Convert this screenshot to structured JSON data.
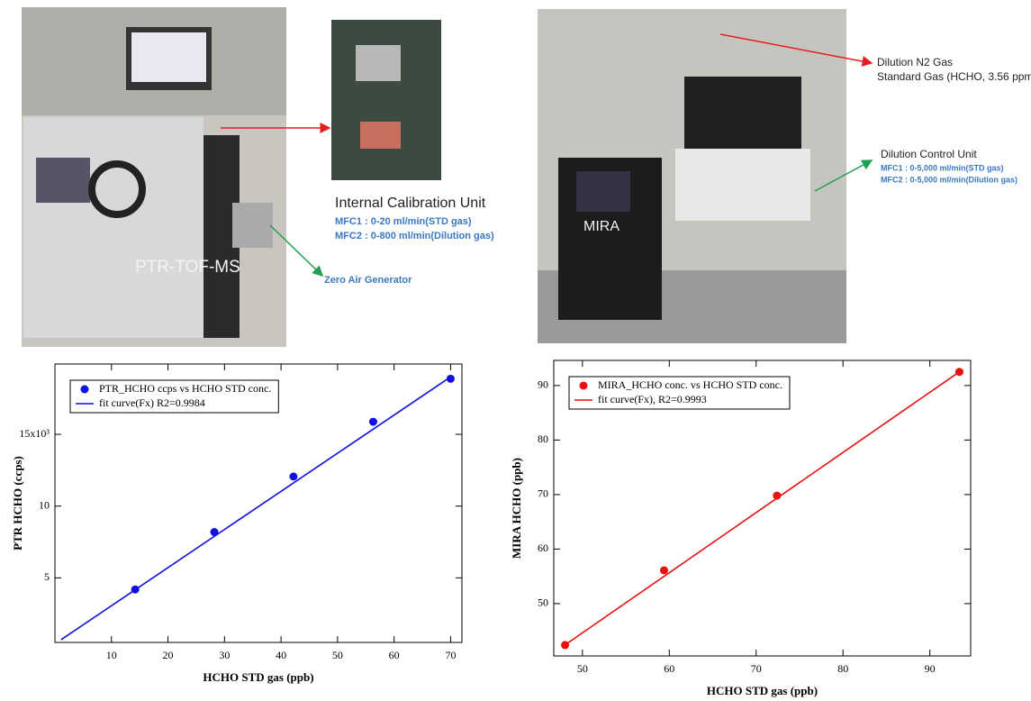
{
  "photos": {
    "left_label": "PTR-TOF-MS",
    "calibration_title": "Internal Calibration Unit",
    "calibration_mfc1": "MFC1 : 0-20 ml/min(STD gas)",
    "calibration_mfc2": "MFC2 : 0-800 ml/min(Dilution gas)",
    "zero_air": "Zero Air Generator",
    "mira_label": "MIRA",
    "dilution_gas": "Dilution N2 Gas",
    "standard_gas": "Standard Gas (HCHO, 3.56 ppm)",
    "control_title": "Dilution Control Unit",
    "control_mfc1": "MFC1 : 0-5,000 ml/min(STD gas)",
    "control_mfc2": "MFC2 : 0-5,000 ml/min(Dilution gas)"
  },
  "chart_data": [
    {
      "type": "scatter",
      "x_label": "HCHO STD gas (ppb)",
      "y_label": "PTR HCHO (ccps)",
      "xlim": [
        0,
        72
      ],
      "ylim": [
        500,
        19900
      ],
      "xticks": [
        10,
        20,
        30,
        40,
        50,
        60,
        70
      ],
      "yticks": [
        {
          "value": 5000,
          "label": "5"
        },
        {
          "value": 10000,
          "label": "10"
        },
        {
          "value": 15000,
          "label": "15x10³"
        }
      ],
      "legend": "top-left",
      "series": [
        {
          "name": "PTR_HCHO ccps vs HCHO STD conc.",
          "color": "#1010e0",
          "style": "markers",
          "x": [
            14.2,
            28.2,
            42.2,
            56.3,
            70
          ],
          "values": [
            4190,
            8190,
            12060,
            15875,
            18875
          ]
        },
        {
          "name": "fit curve(Fx) R2=0.9984",
          "color": "#1010e0",
          "style": "line",
          "x": [
            1.1,
            70
          ],
          "values": [
            690,
            19000
          ]
        }
      ]
    },
    {
      "type": "scatter",
      "x_label": "HCHO STD gas (ppb)",
      "y_label": "MIRA HCHO (ppb)",
      "xlim": [
        46.7,
        94.7
      ],
      "ylim": [
        40.4,
        94.6
      ],
      "xticks": [
        50,
        60,
        70,
        80,
        90
      ],
      "yticks": [
        50,
        60,
        70,
        80,
        90
      ],
      "legend": "top-left",
      "series": [
        {
          "name": "MIRA_HCHO conc. vs HCHO STD conc.",
          "color": "#e81010",
          "style": "markers",
          "x": [
            48.0,
            59.4,
            72.4,
            93.4
          ],
          "values": [
            42.4,
            56.1,
            69.8,
            92.5
          ]
        },
        {
          "name": "fit curve(Fx), R2=0.9993",
          "color": "#e81010",
          "style": "line",
          "x": [
            47.7,
            93.4
          ],
          "values": [
            42.1,
            92.5
          ]
        }
      ]
    }
  ]
}
